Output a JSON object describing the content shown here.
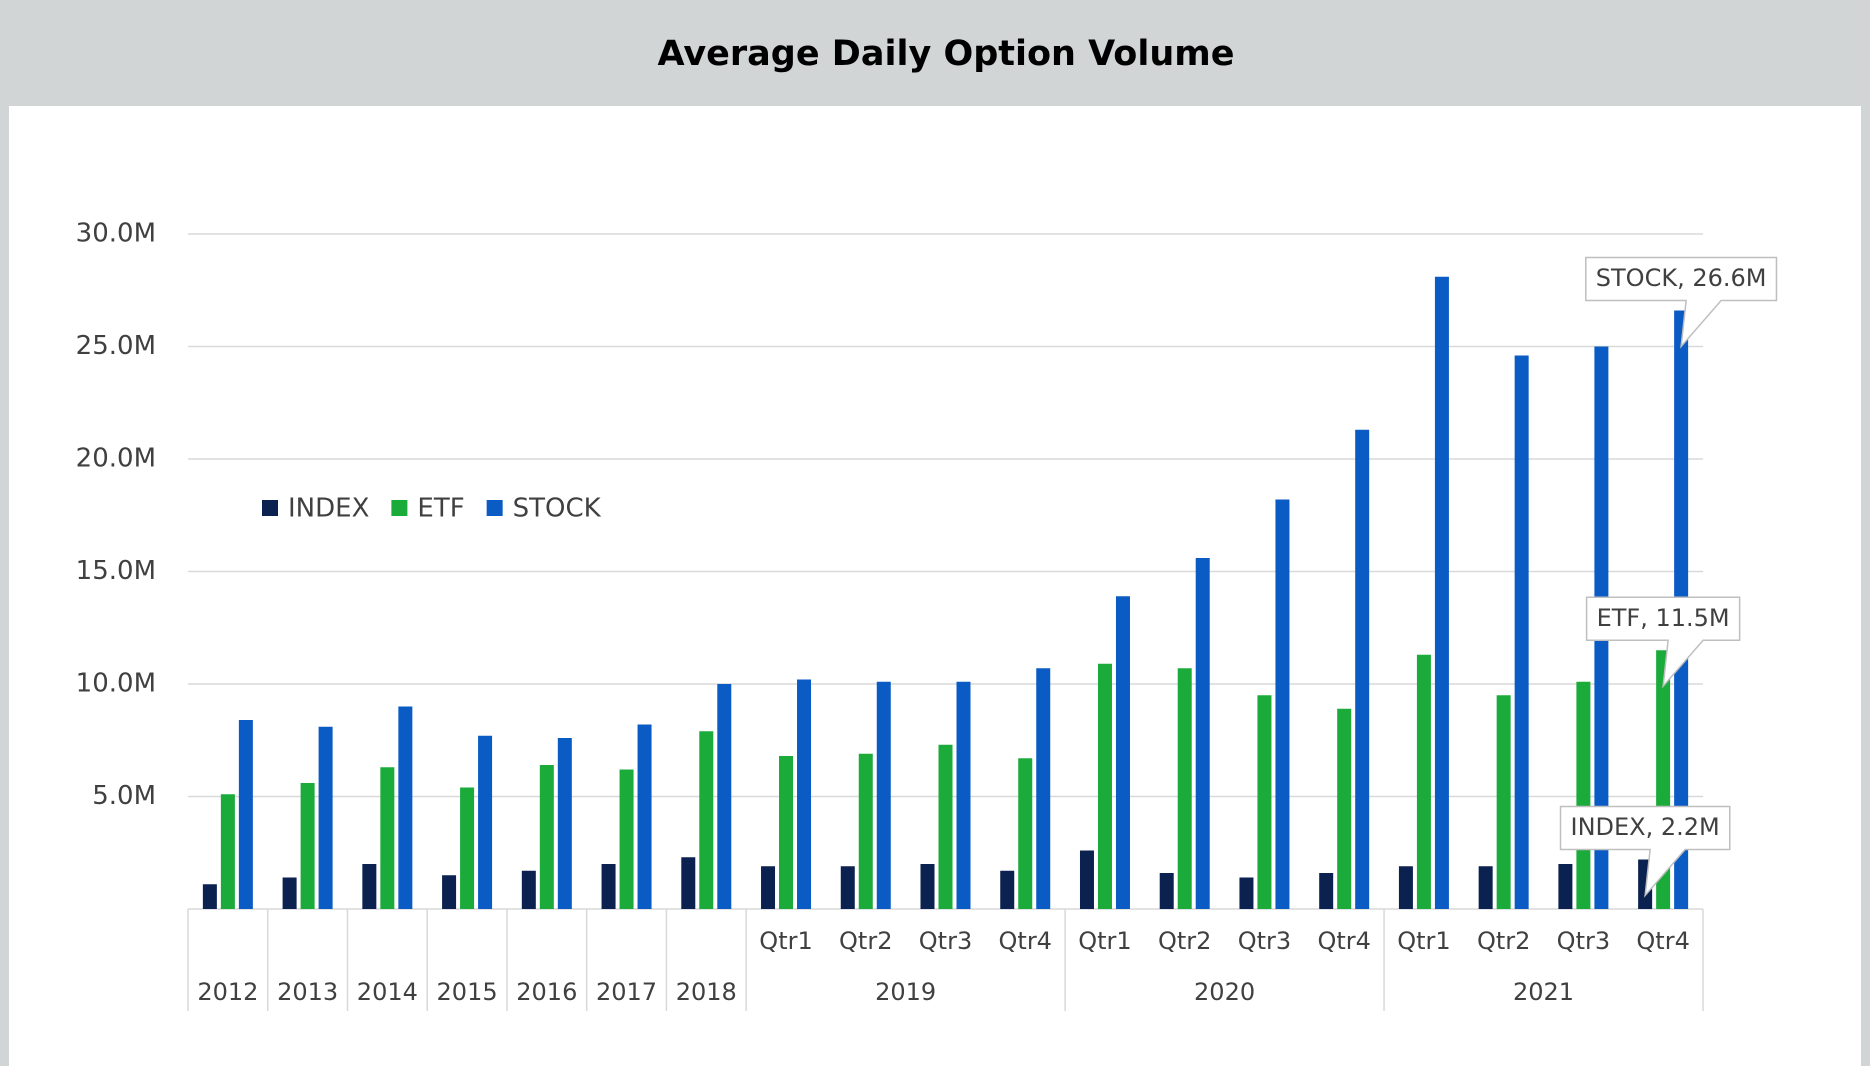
{
  "chart_data": {
    "type": "bar",
    "title": "Average Daily Option Volume",
    "category_groups": [
      {
        "label": "2012",
        "categories": [
          null
        ]
      },
      {
        "label": "2013",
        "categories": [
          null
        ]
      },
      {
        "label": "2014",
        "categories": [
          null
        ]
      },
      {
        "label": "2015",
        "categories": [
          null
        ]
      },
      {
        "label": "2016",
        "categories": [
          null
        ]
      },
      {
        "label": "2017",
        "categories": [
          null
        ]
      },
      {
        "label": "2018",
        "categories": [
          null
        ]
      },
      {
        "label": "2019",
        "categories": [
          "Qtr1",
          "Qtr2",
          "Qtr3",
          "Qtr4"
        ]
      },
      {
        "label": "2020",
        "categories": [
          "Qtr1",
          "Qtr2",
          "Qtr3",
          "Qtr4"
        ]
      },
      {
        "label": "2021",
        "categories": [
          "Qtr1",
          "Qtr2",
          "Qtr3",
          "Qtr4"
        ]
      }
    ],
    "series": [
      {
        "name": "INDEX",
        "color": "#0b2150",
        "values": [
          1.1,
          1.4,
          2.0,
          1.5,
          1.7,
          2.0,
          2.3,
          1.9,
          1.9,
          2.0,
          1.7,
          2.6,
          1.6,
          1.4,
          1.6,
          1.9,
          1.9,
          2.0,
          2.2
        ],
        "value_labels": [
          null,
          null,
          null,
          null,
          null,
          null,
          null,
          null,
          null,
          null,
          null,
          null,
          null,
          null,
          null,
          null,
          null,
          null,
          "INDEX, 2.2M"
        ]
      },
      {
        "name": "ETF",
        "color": "#1aab3a",
        "values": [
          5.1,
          5.6,
          6.3,
          5.4,
          6.4,
          6.2,
          7.9,
          6.8,
          6.9,
          7.3,
          6.7,
          10.9,
          10.7,
          9.5,
          8.9,
          11.3,
          9.5,
          10.1,
          11.5
        ],
        "value_labels": [
          null,
          null,
          null,
          null,
          null,
          null,
          null,
          null,
          null,
          null,
          null,
          null,
          null,
          null,
          null,
          null,
          null,
          null,
          "ETF, 11.5M"
        ]
      },
      {
        "name": "STOCK",
        "color": "#0a5bc4",
        "values": [
          8.4,
          8.1,
          9.0,
          7.7,
          7.6,
          8.2,
          10.0,
          10.2,
          10.1,
          10.1,
          10.7,
          13.9,
          15.6,
          18.2,
          21.3,
          28.1,
          24.6,
          25.0,
          26.6
        ],
        "value_labels": [
          null,
          null,
          null,
          null,
          null,
          null,
          null,
          null,
          null,
          null,
          null,
          null,
          null,
          null,
          null,
          null,
          null,
          null,
          "STOCK, 26.6M"
        ]
      }
    ],
    "ylim": [
      0,
      30
    ],
    "yticks": [
      {
        "value": 5,
        "label": "5.0M"
      },
      {
        "value": 10,
        "label": "10.0M"
      },
      {
        "value": 15,
        "label": "15.0M"
      },
      {
        "value": 20,
        "label": "20.0M"
      },
      {
        "value": 25,
        "label": "25.0M"
      },
      {
        "value": 30,
        "label": "30.0M"
      }
    ],
    "grid": true,
    "legend": "upper-left"
  }
}
